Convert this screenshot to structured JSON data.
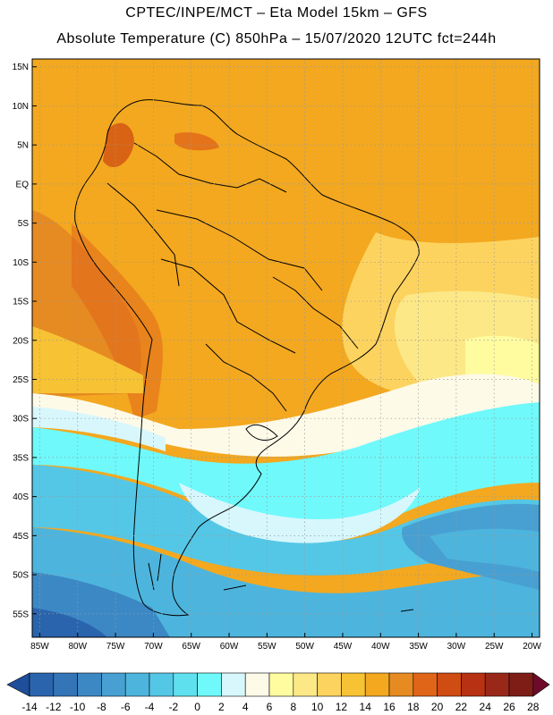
{
  "header": {
    "line1": "CPTEC/INPE/MCT –  Eta Model 15km – GFS",
    "line2": "Absolute Temperature (C) 850hPa – 15/07/2020 12UTC fct=244h"
  },
  "axes": {
    "lat_labels": [
      "15N",
      "10N",
      "5N",
      "EQ",
      "5S",
      "10S",
      "15S",
      "20S",
      "25S",
      "30S",
      "35S",
      "40S",
      "45S",
      "50S",
      "55S"
    ],
    "lat_values": [
      15,
      10,
      5,
      0,
      -5,
      -10,
      -15,
      -20,
      -25,
      -30,
      -35,
      -40,
      -45,
      -50,
      -55
    ],
    "lon_labels": [
      "85W",
      "80W",
      "75W",
      "70W",
      "65W",
      "60W",
      "55W",
      "50W",
      "45W",
      "40W",
      "35W",
      "30W",
      "25W",
      "20W"
    ],
    "lon_values": [
      -85,
      -80,
      -75,
      -70,
      -65,
      -60,
      -55,
      -50,
      -45,
      -40,
      -35,
      -30,
      -25,
      -20
    ]
  },
  "colorbar": {
    "labels": [
      "-14",
      "-12",
      "-10",
      "-8",
      "-6",
      "-4",
      "-2",
      "0",
      "2",
      "4",
      "6",
      "8",
      "10",
      "12",
      "14",
      "16",
      "18",
      "20",
      "22",
      "24",
      "26",
      "28"
    ],
    "colors": [
      "#1f4e9a",
      "#2a64ad",
      "#3475b8",
      "#3c88c4",
      "#48a0d2",
      "#4db5dd",
      "#55c7e6",
      "#5fe0ee",
      "#6ff9fb",
      "#d7f7fc",
      "#fdfae8",
      "#fffca0",
      "#fce887",
      "#fdd35f",
      "#f7c234",
      "#f3a81f",
      "#e68a22",
      "#e06519",
      "#cf4c12",
      "#b73112",
      "#992818",
      "#7d1d16",
      "#6e0b2b"
    ]
  },
  "map_data": {
    "extent": {
      "lon_min": -86,
      "lon_max": -19,
      "lat_min": -58,
      "lat_max": 16
    },
    "field": "850hPa Absolute Temperature (C)"
  }
}
